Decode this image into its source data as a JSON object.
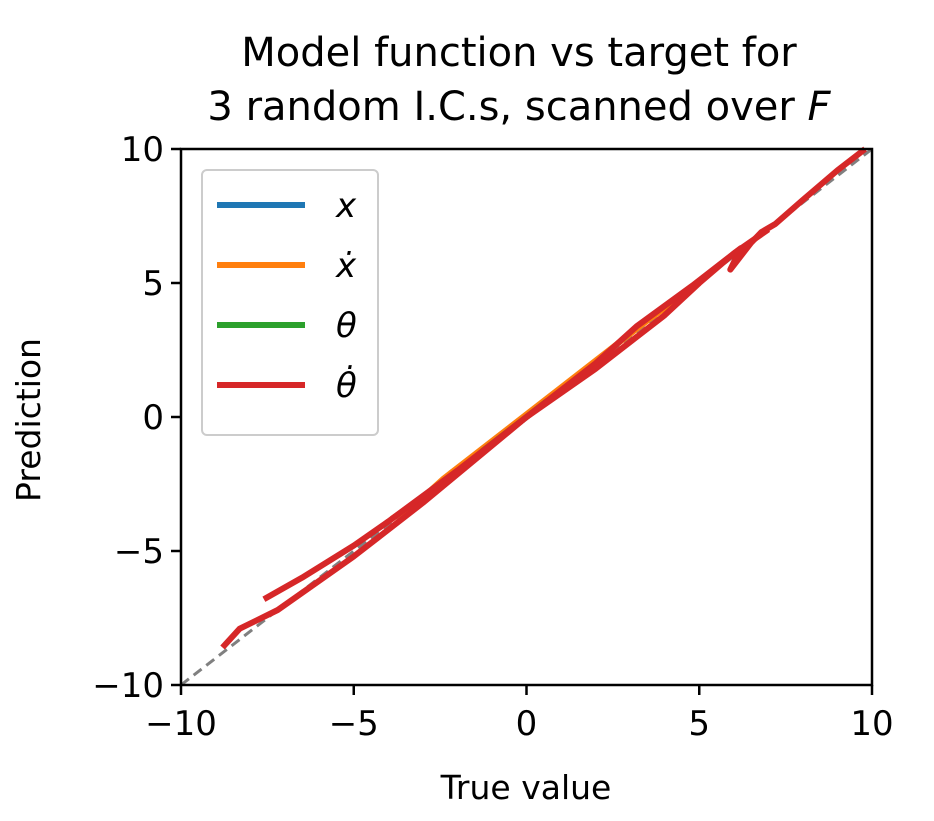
{
  "chart_data": {
    "type": "line",
    "title_lines": [
      "Model function vs target for",
      "3 random I.C.s, scanned over "
    ],
    "title_var": "F",
    "xlabel": "True value",
    "ylabel": "Prediction",
    "xlim": [
      -10,
      10
    ],
    "ylim": [
      -10,
      10
    ],
    "xticks": [
      -10,
      -5,
      0,
      5,
      10
    ],
    "yticks": [
      -10,
      -5,
      0,
      5,
      10
    ],
    "xtick_labels": [
      "−10",
      "−5",
      "0",
      "5",
      "10"
    ],
    "ytick_labels": [
      "−10",
      "−5",
      "0",
      "5",
      "10"
    ],
    "grid": false,
    "legend_position": "upper left",
    "reference_line": {
      "style": "dashed",
      "color": "#808080",
      "x": [
        -10,
        10
      ],
      "y": [
        -10,
        10
      ]
    },
    "series": [
      {
        "name": "x",
        "color": "#1f77b4",
        "x": [
          -2.2,
          -1.0,
          0.0,
          1.2,
          2.4
        ],
        "y": [
          -2.1,
          -1.0,
          0.0,
          1.2,
          2.4
        ]
      },
      {
        "name": "ẋ",
        "color": "#ff7f0e",
        "x": [
          -3.9,
          -3.0,
          -2.4,
          2.5,
          3.5,
          5.0
        ],
        "y": [
          -3.8,
          -3.0,
          -2.3,
          2.6,
          3.6,
          5.0
        ]
      },
      {
        "name": "θ",
        "color": "#2ca02c",
        "x": [
          -1.3,
          -0.5,
          0.0,
          0.6
        ],
        "y": [
          -1.3,
          -0.5,
          0.0,
          0.6
        ]
      },
      {
        "name": "θ̇",
        "color": "#d62728",
        "x": [
          -7.6,
          -6.5,
          -5.0,
          -4.0,
          -2.0,
          0.0,
          2.0,
          3.2,
          4.8,
          5.8,
          6.2,
          5.9,
          6.5,
          6.8,
          7.2,
          8.0,
          9.0,
          9.8
        ],
        "y": [
          -6.8,
          -6.0,
          -4.8,
          -3.9,
          -2.0,
          0.0,
          2.0,
          3.4,
          4.9,
          5.9,
          6.3,
          5.5,
          6.5,
          6.9,
          7.2,
          8.1,
          9.2,
          10.0
        ]
      },
      {
        "name": "",
        "color": "#d62728",
        "x": [
          -8.8,
          -8.3,
          -7.2,
          -5.0,
          -3.0,
          0.0,
          2.0,
          4.0,
          5.0,
          6.0,
          7.0
        ],
        "y": [
          -8.6,
          -7.9,
          -7.2,
          -5.2,
          -3.2,
          0.0,
          1.8,
          3.8,
          5.0,
          6.1,
          7.0
        ]
      }
    ]
  }
}
